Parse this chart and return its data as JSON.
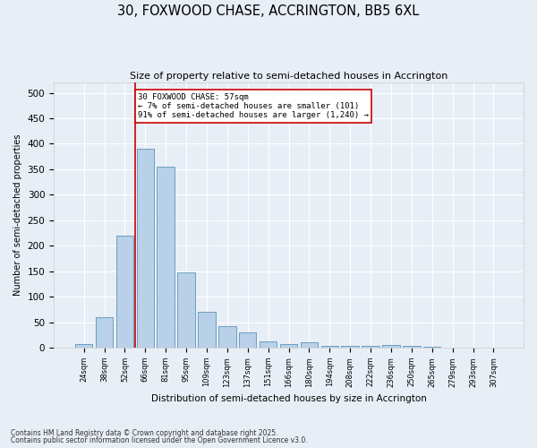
{
  "title": "30, FOXWOOD CHASE, ACCRINGTON, BB5 6XL",
  "subtitle": "Size of property relative to semi-detached houses in Accrington",
  "xlabel": "Distribution of semi-detached houses by size in Accrington",
  "ylabel": "Number of semi-detached properties",
  "categories": [
    "24sqm",
    "38sqm",
    "52sqm",
    "66sqm",
    "81sqm",
    "95sqm",
    "109sqm",
    "123sqm",
    "137sqm",
    "151sqm",
    "166sqm",
    "180sqm",
    "194sqm",
    "208sqm",
    "222sqm",
    "236sqm",
    "250sqm",
    "265sqm",
    "279sqm",
    "293sqm",
    "307sqm"
  ],
  "values": [
    7,
    60,
    220,
    390,
    355,
    148,
    70,
    42,
    30,
    13,
    8,
    10,
    4,
    4,
    3,
    5,
    3,
    2,
    1,
    1,
    1
  ],
  "bar_color": "#b8d0e8",
  "bar_edge_color": "#6a9fc0",
  "bg_color": "#e8eef5",
  "grid_color": "#ffffff",
  "marker_line_color": "#cc0000",
  "annotation_text": "30 FOXWOOD CHASE: 57sqm\n← 7% of semi-detached houses are smaller (101)\n91% of semi-detached houses are larger (1,240) →",
  "footnote1": "Contains HM Land Registry data © Crown copyright and database right 2025.",
  "footnote2": "Contains public sector information licensed under the Open Government Licence v3.0.",
  "ylim": [
    0,
    520
  ],
  "yticks": [
    0,
    50,
    100,
    150,
    200,
    250,
    300,
    350,
    400,
    450,
    500
  ],
  "marker_bar_index": 2
}
